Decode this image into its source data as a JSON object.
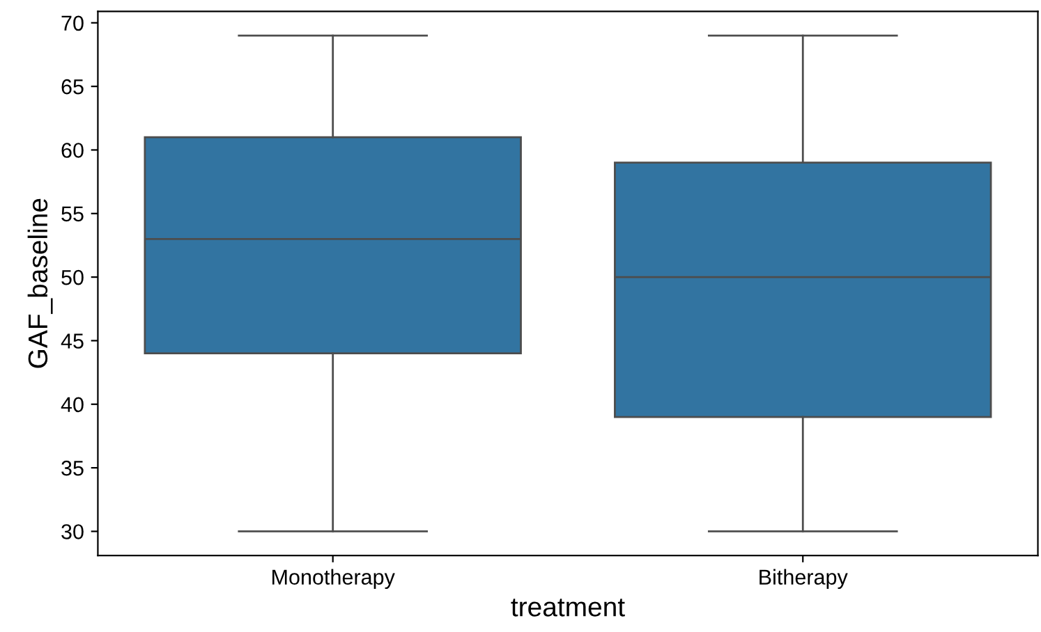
{
  "chart_data": {
    "type": "box",
    "xlabel": "treatment",
    "ylabel": "GAF_baseline",
    "categories": [
      "Monotherapy",
      "Bitherapy"
    ],
    "boxes": [
      {
        "low": 30,
        "q1": 44,
        "median": 53,
        "q3": 61,
        "high": 69
      },
      {
        "low": 30,
        "q1": 39,
        "median": 50,
        "q3": 59,
        "high": 69
      }
    ],
    "color": "#3274a1",
    "ylim": [
      28.1,
      70.9
    ],
    "yticks": [
      30,
      35,
      40,
      45,
      50,
      55,
      60,
      65,
      70
    ],
    "grid": false
  }
}
